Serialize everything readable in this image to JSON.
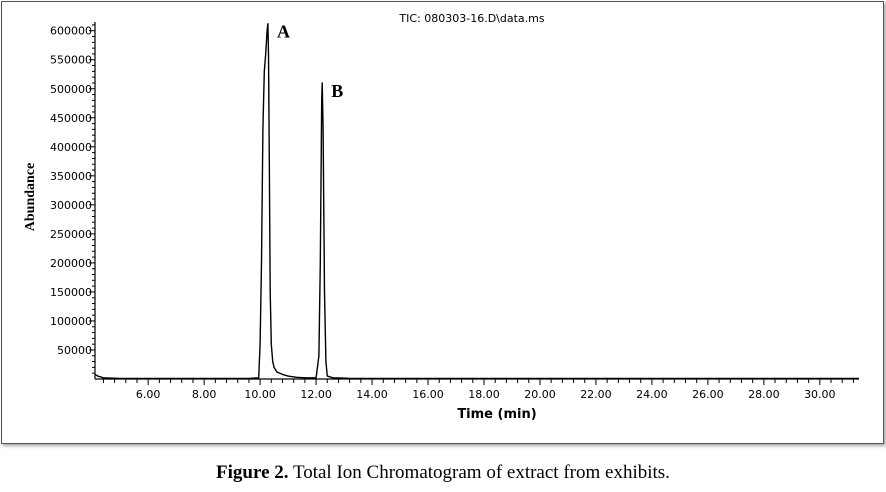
{
  "caption": {
    "label": "Figure 2.",
    "text": " Total Ion Chromatogram of extract from exhibits."
  },
  "chart_data": {
    "type": "line",
    "title": "TIC: 080303-16.D\\data.ms",
    "xlabel": "Time (min)",
    "ylabel": "Abundance",
    "xlim": [
      4.1,
      31.4
    ],
    "ylim": [
      0,
      615000
    ],
    "x_ticks": [
      6,
      8,
      10,
      12,
      14,
      16,
      18,
      20,
      22,
      24,
      26,
      28,
      30
    ],
    "x_tick_labels": [
      "6.00",
      "8.00",
      "10.00",
      "12.00",
      "14.00",
      "16.00",
      "18.00",
      "20.00",
      "22.00",
      "24.00",
      "26.00",
      "28.00",
      "30.00"
    ],
    "y_ticks": [
      50000,
      100000,
      150000,
      200000,
      250000,
      300000,
      350000,
      400000,
      450000,
      500000,
      550000,
      600000
    ],
    "y_tick_labels": [
      "50000",
      "100000",
      "150000",
      "200000",
      "250000",
      "300000",
      "350000",
      "400000",
      "450000",
      "500000",
      "550000",
      "600000"
    ],
    "grid": false,
    "series": [
      {
        "color": "#000000",
        "x": [
          4.1,
          4.2,
          4.4,
          5.0,
          6.0,
          8.0,
          9.6,
          9.95,
          10.0,
          10.05,
          10.1,
          10.15,
          10.2,
          10.25,
          10.28,
          10.3,
          10.33,
          10.36,
          10.4,
          10.45,
          10.5,
          10.6,
          10.8,
          11.0,
          11.3,
          11.6,
          12.0,
          12.1,
          12.15,
          12.2,
          12.22,
          12.25,
          12.3,
          12.35,
          12.4,
          12.6,
          13.0,
          13.2,
          14.0,
          16.0,
          20.0,
          25.0,
          30.0,
          31.4
        ],
        "y": [
          8000,
          5000,
          2000,
          1000,
          1000,
          1000,
          1000,
          2000,
          60000,
          200000,
          430000,
          530000,
          560000,
          600000,
          612000,
          560000,
          380000,
          150000,
          60000,
          30000,
          20000,
          12000,
          8000,
          5000,
          3000,
          2000,
          2000,
          40000,
          200000,
          480000,
          510000,
          430000,
          150000,
          30000,
          5000,
          2000,
          1500,
          1000,
          1000,
          1000,
          1000,
          1000,
          1000,
          1000
        ]
      }
    ],
    "annotations": [
      {
        "text": "A",
        "x": 10.28,
        "y": 612000
      },
      {
        "text": "B",
        "x": 12.22,
        "y": 510000
      }
    ]
  }
}
